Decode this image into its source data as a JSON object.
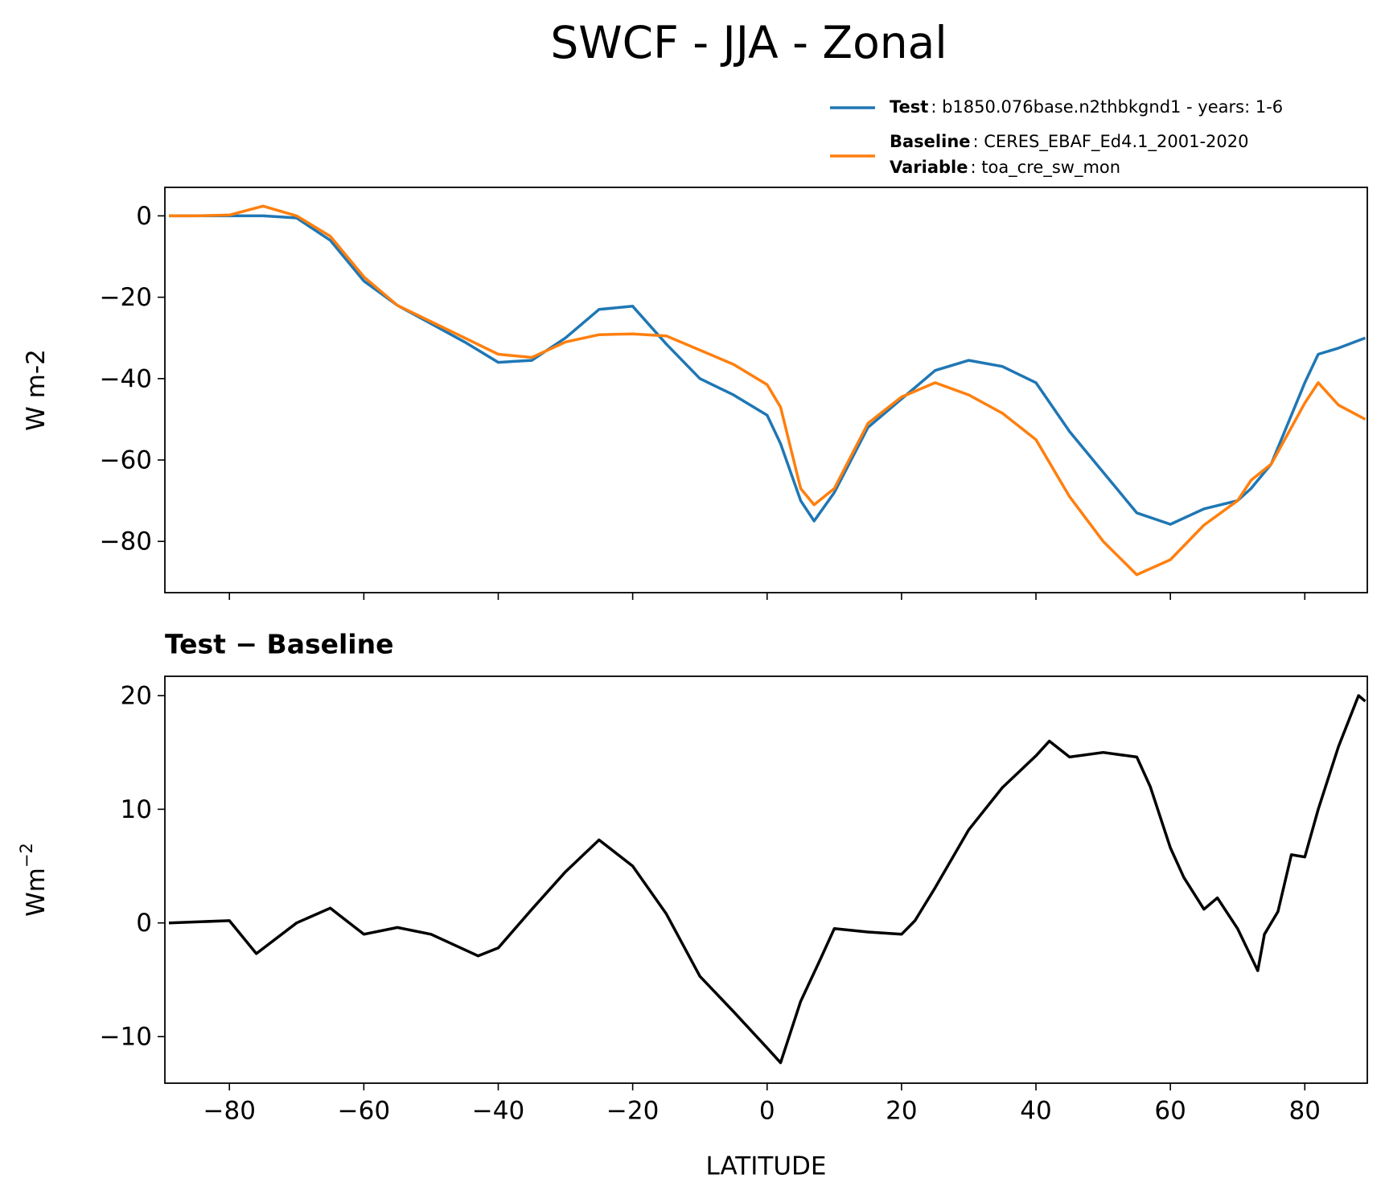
{
  "title": "SWCF - JJA - Zonal",
  "chart_data": [
    {
      "type": "line",
      "ylabel": "W m-2",
      "xlim": [
        -89.6,
        89.3
      ],
      "ylim": [
        -92.6,
        7
      ],
      "xticks": [
        -80,
        -60,
        -40,
        -20,
        0,
        20,
        40,
        60,
        80
      ],
      "xtick_labels": false,
      "yticks": [
        {
          "value": -80,
          "label": "−80"
        },
        {
          "value": -60,
          "label": "−60"
        },
        {
          "value": -40,
          "label": "−40"
        },
        {
          "value": -20,
          "label": "−20"
        },
        0
      ],
      "x": [
        -89,
        -85,
        -80,
        -75,
        -70,
        -65,
        -60,
        -55,
        -50,
        -45,
        -40,
        -35,
        -30,
        -25,
        -20,
        -15,
        -10,
        -5,
        0,
        2,
        5,
        7,
        10,
        15,
        20,
        25,
        30,
        35,
        40,
        45,
        50,
        55,
        60,
        65,
        70,
        72,
        75,
        80,
        82,
        85,
        89
      ],
      "series": [
        {
          "name": "Test",
          "description": ": b1850.076base.n2thbkgnd1 - years: 1-6",
          "color": "#1f77b4",
          "values": [
            0,
            0,
            0,
            0,
            -0.5,
            -6,
            -16,
            -22,
            -26.5,
            -31,
            -36,
            -35.5,
            -30,
            -23,
            -22.2,
            -31.5,
            -40,
            -44,
            -49,
            -56,
            -70,
            -75,
            -68,
            -52,
            -45,
            -38,
            -35.5,
            -37,
            -41,
            -53,
            -63,
            -73,
            -75.8,
            -72,
            -70,
            -67,
            -61,
            -41,
            -34,
            -32.5,
            -30
          ]
        },
        {
          "name": "Baseline",
          "description": ": CERES_EBAF_Ed4.1_2001-2020",
          "color": "#ff7f0e",
          "values": [
            0,
            0,
            0.2,
            2.4,
            0,
            -5,
            -15,
            -22,
            -26,
            -30,
            -34,
            -34.8,
            -31,
            -29.2,
            -29,
            -29.5,
            -33,
            -36.5,
            -41.5,
            -47,
            -67,
            -71,
            -67,
            -51,
            -44.5,
            -41,
            -44,
            -48.5,
            -55,
            -69,
            -80,
            -88.2,
            -84.5,
            -76,
            -70,
            -65,
            -61,
            -46,
            -41,
            -46.5,
            -50
          ]
        }
      ],
      "variable_label": "Variable",
      "variable": ": toa_cre_sw_mon"
    },
    {
      "type": "line",
      "title": "Test − Baseline",
      "ylabel": "Wm",
      "ylabel_sup": "−2",
      "xlabel": "LATITUDE",
      "xlim": [
        -89.6,
        89.3
      ],
      "ylim": [
        -14.1,
        21.7
      ],
      "xticks": [
        {
          "value": -80,
          "label": "−80"
        },
        {
          "value": -60,
          "label": "−60"
        },
        {
          "value": -40,
          "label": "−40"
        },
        {
          "value": -20,
          "label": "−20"
        },
        0,
        20,
        40,
        60,
        80
      ],
      "yticks": [
        {
          "value": -10,
          "label": "−10"
        },
        0,
        10,
        20
      ],
      "x": [
        -89,
        -80,
        -76,
        -70,
        -65,
        -60,
        -55,
        -50,
        -43,
        -40,
        -35,
        -30,
        -25,
        -20,
        -15,
        -10,
        -5,
        0,
        2,
        5,
        8,
        10,
        15,
        20,
        22,
        25,
        30,
        35,
        40,
        42,
        45,
        50,
        55,
        57,
        60,
        62,
        65,
        67,
        70,
        73,
        74,
        76,
        78,
        80,
        82,
        85,
        88,
        89
      ],
      "values": [
        0,
        0.2,
        -2.7,
        0,
        1.3,
        -1,
        -0.4,
        -1,
        -2.9,
        -2.2,
        1.2,
        4.5,
        7.3,
        5,
        0.8,
        -4.7,
        -7.8,
        -11,
        -12.3,
        -6.9,
        -3.1,
        -0.5,
        -0.8,
        -1,
        0.2,
        3.1,
        8.2,
        11.9,
        14.7,
        16,
        14.6,
        15,
        14.6,
        12,
        6.6,
        4,
        1.2,
        2.2,
        -0.5,
        -4.2,
        -1,
        1,
        6,
        5.8,
        10,
        15.5,
        20,
        19.5
      ],
      "color": "#000000"
    }
  ]
}
